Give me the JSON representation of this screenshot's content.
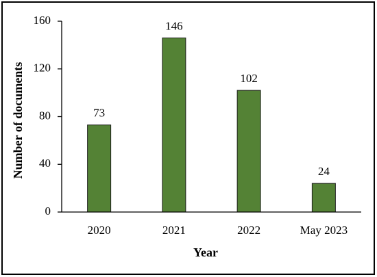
{
  "chart_data": {
    "type": "bar",
    "categories": [
      "2020",
      "2021",
      "2022",
      "May 2023"
    ],
    "values": [
      73,
      146,
      102,
      24
    ],
    "color": "#548235",
    "xlabel": "Year",
    "ylabel": "Number of documents",
    "ylim": [
      0,
      160
    ],
    "yticks": [
      0,
      40,
      80,
      120,
      160
    ],
    "grid": false
  }
}
